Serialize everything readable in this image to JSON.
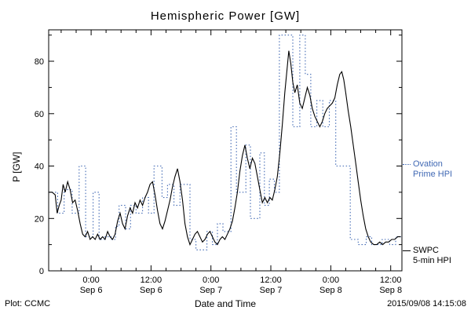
{
  "footer": {
    "plot_source": "Plot: CCMC",
    "timestamp": "2015/09/08 14:15:08"
  },
  "legend": {
    "ovation": {
      "line1": "Ovation",
      "line2": "Prime HPI",
      "color": "#4169b4"
    },
    "swpc": {
      "line1": "SWPC",
      "line2": "5-min HPI",
      "color": "#000000"
    }
  },
  "chart_data": {
    "type": "line",
    "title": "Hemispheric Power [GW]",
    "xlabel": "Date and Time",
    "ylabel": "P [GW]",
    "x_unit": "hours since 2015-09-05 00:00 UT",
    "xlim": [
      15.5,
      86.25
    ],
    "ylim": [
      0,
      92
    ],
    "grid": false,
    "legend_position": "right-outside",
    "yticks": [
      0,
      20,
      40,
      60,
      80
    ],
    "yminor": [
      10,
      30,
      50,
      70,
      90
    ],
    "xticks": [
      {
        "t": 24,
        "line1": "0:00",
        "line2": "Sep 6"
      },
      {
        "t": 36,
        "line1": "12:00",
        "line2": "Sep 6"
      },
      {
        "t": 48,
        "line1": "0:00",
        "line2": "Sep 7"
      },
      {
        "t": 60,
        "line1": "12:00",
        "line2": "Sep 7"
      },
      {
        "t": 72,
        "line1": "0:00",
        "line2": "Sep 8"
      },
      {
        "t": 84,
        "line1": "12:00",
        "line2": "Sep 8"
      }
    ],
    "series": [
      {
        "name": "Ovation Prime HPI",
        "color": "#4169b4",
        "style": "dotted",
        "interp": "step-after",
        "points": [
          [
            15.5,
            30
          ],
          [
            17.3,
            22
          ],
          [
            18.6,
            31
          ],
          [
            20.2,
            22
          ],
          [
            21.6,
            40
          ],
          [
            22.9,
            13
          ],
          [
            24.4,
            30
          ],
          [
            25.6,
            12
          ],
          [
            26.8,
            13
          ],
          [
            28.0,
            12
          ],
          [
            28.9,
            17
          ],
          [
            29.6,
            25
          ],
          [
            30.9,
            16
          ],
          [
            31.9,
            25
          ],
          [
            33.0,
            22
          ],
          [
            34.3,
            28
          ],
          [
            35.5,
            22
          ],
          [
            36.6,
            40
          ],
          [
            38.2,
            28
          ],
          [
            39.3,
            33
          ],
          [
            40.6,
            25
          ],
          [
            41.8,
            33
          ],
          [
            43.8,
            12
          ],
          [
            45.0,
            8
          ],
          [
            47.2,
            15
          ],
          [
            48.3,
            10
          ],
          [
            49.3,
            18
          ],
          [
            50.4,
            15
          ],
          [
            52.0,
            55
          ],
          [
            53.1,
            30
          ],
          [
            55.0,
            48
          ],
          [
            55.9,
            20
          ],
          [
            57.8,
            45
          ],
          [
            58.7,
            25
          ],
          [
            59.7,
            35
          ],
          [
            60.7,
            30
          ],
          [
            61.7,
            90
          ],
          [
            64.4,
            55
          ],
          [
            65.8,
            90
          ],
          [
            66.9,
            75
          ],
          [
            68.0,
            55
          ],
          [
            69.2,
            65
          ],
          [
            70.4,
            55
          ],
          [
            71.7,
            65
          ],
          [
            73.0,
            40
          ],
          [
            75.9,
            12
          ],
          [
            77.5,
            10
          ],
          [
            79.1,
            13
          ],
          [
            80.2,
            10
          ],
          [
            82.3,
            12
          ],
          [
            83.8,
            10
          ],
          [
            85.0,
            13
          ]
        ]
      },
      {
        "name": "SWPC 5-min HPI",
        "color": "#000000",
        "style": "solid",
        "interp": "linear",
        "points": [
          [
            15.5,
            30
          ],
          [
            16.2,
            30
          ],
          [
            16.8,
            29
          ],
          [
            17.2,
            22
          ],
          [
            17.6,
            25
          ],
          [
            18.0,
            27
          ],
          [
            18.4,
            33
          ],
          [
            18.8,
            30
          ],
          [
            19.3,
            34
          ],
          [
            19.8,
            31
          ],
          [
            20.3,
            26
          ],
          [
            20.8,
            27
          ],
          [
            21.3,
            23
          ],
          [
            21.8,
            18
          ],
          [
            22.3,
            14
          ],
          [
            22.8,
            13
          ],
          [
            23.3,
            15
          ],
          [
            23.8,
            12
          ],
          [
            24.3,
            13
          ],
          [
            24.8,
            12
          ],
          [
            25.3,
            14
          ],
          [
            25.8,
            12
          ],
          [
            26.3,
            13
          ],
          [
            26.8,
            12
          ],
          [
            27.3,
            15
          ],
          [
            27.8,
            13
          ],
          [
            28.3,
            12
          ],
          [
            28.8,
            14
          ],
          [
            29.3,
            19
          ],
          [
            29.8,
            22
          ],
          [
            30.3,
            18
          ],
          [
            30.8,
            16
          ],
          [
            31.3,
            21
          ],
          [
            31.8,
            24
          ],
          [
            32.3,
            22
          ],
          [
            32.8,
            26
          ],
          [
            33.3,
            24
          ],
          [
            33.8,
            27
          ],
          [
            34.3,
            25
          ],
          [
            34.8,
            28
          ],
          [
            35.3,
            30
          ],
          [
            35.8,
            33
          ],
          [
            36.3,
            34
          ],
          [
            36.8,
            29
          ],
          [
            37.3,
            23
          ],
          [
            37.8,
            18
          ],
          [
            38.3,
            16
          ],
          [
            38.8,
            19
          ],
          [
            39.3,
            23
          ],
          [
            39.8,
            27
          ],
          [
            40.3,
            32
          ],
          [
            40.8,
            36
          ],
          [
            41.3,
            39
          ],
          [
            41.8,
            34
          ],
          [
            42.3,
            27
          ],
          [
            42.8,
            18
          ],
          [
            43.3,
            13
          ],
          [
            43.8,
            10
          ],
          [
            44.3,
            12
          ],
          [
            44.8,
            14
          ],
          [
            45.3,
            15
          ],
          [
            45.8,
            13
          ],
          [
            46.3,
            11
          ],
          [
            46.8,
            12
          ],
          [
            47.3,
            14
          ],
          [
            47.8,
            15
          ],
          [
            48.3,
            13
          ],
          [
            48.8,
            11
          ],
          [
            49.3,
            10
          ],
          [
            49.8,
            12
          ],
          [
            50.3,
            13
          ],
          [
            50.8,
            12
          ],
          [
            51.3,
            14
          ],
          [
            51.8,
            16
          ],
          [
            52.3,
            19
          ],
          [
            52.8,
            24
          ],
          [
            53.3,
            30
          ],
          [
            53.8,
            38
          ],
          [
            54.3,
            44
          ],
          [
            54.8,
            48
          ],
          [
            55.3,
            43
          ],
          [
            55.8,
            39
          ],
          [
            56.3,
            43
          ],
          [
            56.8,
            41
          ],
          [
            57.3,
            36
          ],
          [
            57.8,
            31
          ],
          [
            58.3,
            26
          ],
          [
            58.8,
            28
          ],
          [
            59.3,
            26
          ],
          [
            59.8,
            28
          ],
          [
            60.3,
            27
          ],
          [
            60.8,
            31
          ],
          [
            61.3,
            36
          ],
          [
            61.8,
            45
          ],
          [
            62.3,
            56
          ],
          [
            62.8,
            68
          ],
          [
            63.3,
            78
          ],
          [
            63.6,
            84
          ],
          [
            64.0,
            79
          ],
          [
            64.4,
            72
          ],
          [
            64.8,
            68
          ],
          [
            65.3,
            71
          ],
          [
            65.8,
            64
          ],
          [
            66.3,
            62
          ],
          [
            66.8,
            66
          ],
          [
            67.3,
            70
          ],
          [
            67.8,
            67
          ],
          [
            68.3,
            62
          ],
          [
            68.8,
            59
          ],
          [
            69.3,
            57
          ],
          [
            69.8,
            55
          ],
          [
            70.3,
            57
          ],
          [
            70.8,
            60
          ],
          [
            71.3,
            62
          ],
          [
            71.8,
            63
          ],
          [
            72.3,
            64
          ],
          [
            72.8,
            66
          ],
          [
            73.3,
            71
          ],
          [
            73.8,
            75
          ],
          [
            74.2,
            76
          ],
          [
            74.6,
            73
          ],
          [
            75.0,
            68
          ],
          [
            75.5,
            61
          ],
          [
            76.0,
            55
          ],
          [
            76.5,
            48
          ],
          [
            77.0,
            41
          ],
          [
            77.5,
            34
          ],
          [
            78.0,
            27
          ],
          [
            78.5,
            21
          ],
          [
            79.0,
            16
          ],
          [
            79.5,
            13
          ],
          [
            80.0,
            11
          ],
          [
            80.6,
            10
          ],
          [
            81.2,
            10
          ],
          [
            81.8,
            11
          ],
          [
            82.4,
            10
          ],
          [
            83.0,
            11
          ],
          [
            83.6,
            11
          ],
          [
            84.2,
            12
          ],
          [
            84.8,
            12
          ],
          [
            85.4,
            13
          ],
          [
            86.0,
            13
          ]
        ]
      }
    ]
  }
}
